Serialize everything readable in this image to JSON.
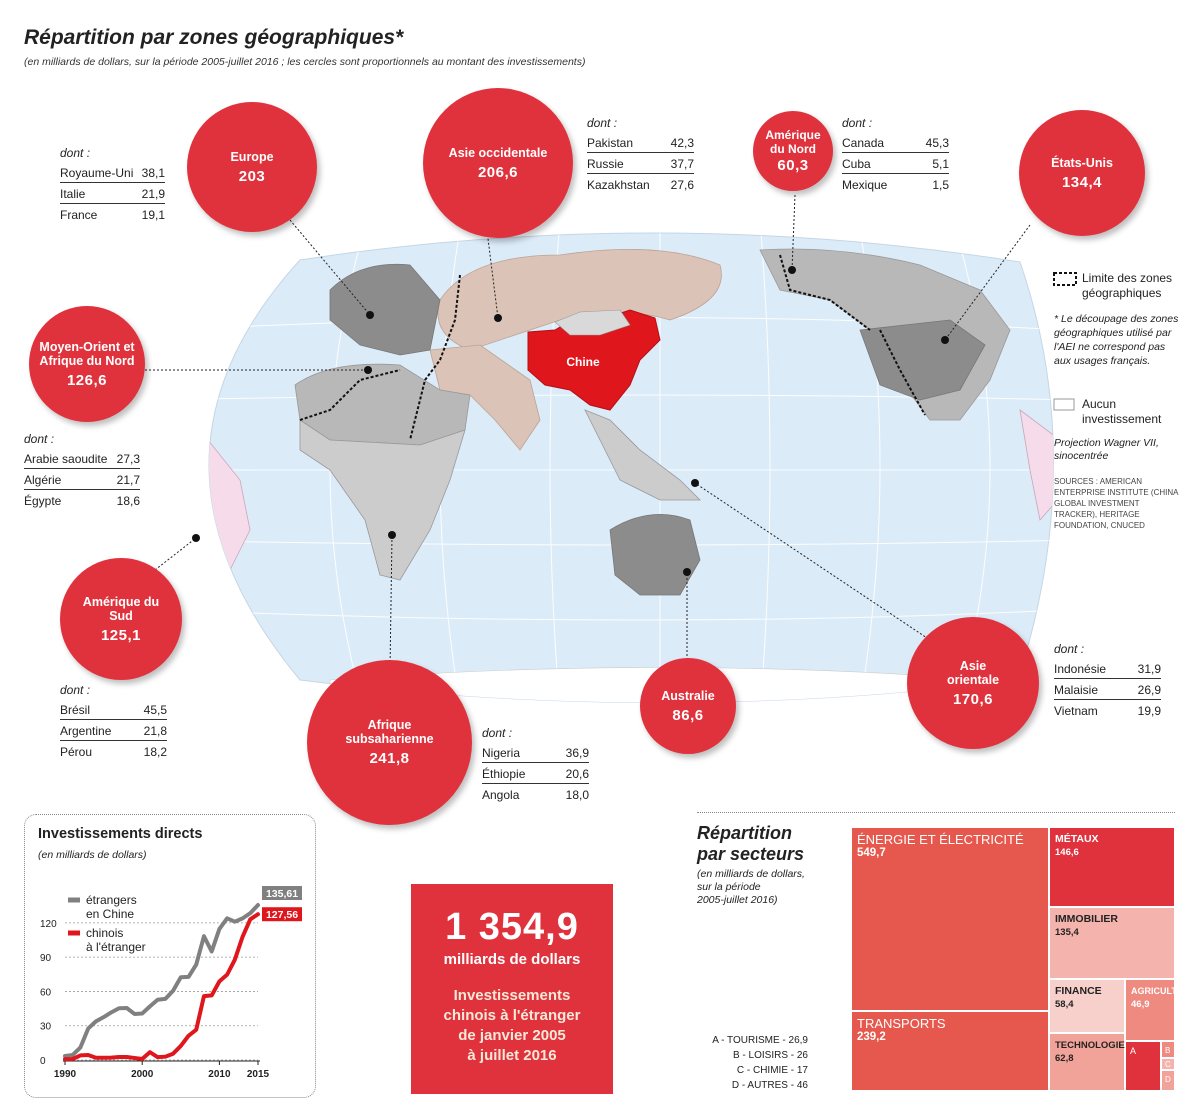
{
  "title": "Répartition par zones géographiques*",
  "subtitle": "(en milliards de dollars, sur la période 2005-juillet 2016 ; les cercles sont proportionnels au montant des investissements)",
  "map": {
    "china_label": "Chine",
    "colors": {
      "china": "#e0161d",
      "ocean": "#dcebf8",
      "west_asia": "#dcc3b7",
      "gray_mid": "#b8b8b8",
      "gray_dark": "#8c8c8c",
      "south_america": "#f6dcea",
      "none": "#ffffff",
      "circle": "#e0323d"
    },
    "legend": {
      "boundary": "Limite des zones géographiques",
      "note": "* Le découpage des zones géographiques utilisé par l'AEI ne correspond pas aux usages français.",
      "no_investment": "Aucun investissement",
      "projection": "Projection Wagner VII, sinocentrée",
      "sources": "SOURCES : AMERICAN ENTERPRISE INSTITUTE (CHINA GLOBAL INVESTMENT TRACKER), HERITAGE FOUNDATION, CNUCED"
    }
  },
  "regions": [
    {
      "name": "Europe",
      "value": "203",
      "dont": [
        [
          "Royaume-Uni",
          "38,1"
        ],
        [
          "Italie",
          "21,9"
        ],
        [
          "France",
          "19,1"
        ]
      ]
    },
    {
      "name": "Asie occidentale",
      "value": "206,6",
      "dont": [
        [
          "Pakistan",
          "42,3"
        ],
        [
          "Russie",
          "37,7"
        ],
        [
          "Kazakhstan",
          "27,6"
        ]
      ]
    },
    {
      "name": "Amérique du Nord",
      "value": "60,3",
      "dont": [
        [
          "Canada",
          "45,3"
        ],
        [
          "Cuba",
          "5,1"
        ],
        [
          "Mexique",
          "1,5"
        ]
      ]
    },
    {
      "name": "États-Unis",
      "value": "134,4"
    },
    {
      "name": "Moyen-Orient et Afrique du Nord",
      "value": "126,6",
      "dont": [
        [
          "Arabie saoudite",
          "27,3"
        ],
        [
          "Algérie",
          "21,7"
        ],
        [
          "Égypte",
          "18,6"
        ]
      ]
    },
    {
      "name": "Amérique du Sud",
      "value": "125,1",
      "dont": [
        [
          "Brésil",
          "45,5"
        ],
        [
          "Argentine",
          "21,8"
        ],
        [
          "Pérou",
          "18,2"
        ]
      ]
    },
    {
      "name": "Afrique subsaharienne",
      "value": "241,8",
      "dont": [
        [
          "Nigeria",
          "36,9"
        ],
        [
          "Éthiopie",
          "20,6"
        ],
        [
          "Angola",
          "18,0"
        ]
      ]
    },
    {
      "name": "Australie",
      "value": "86,6"
    },
    {
      "name": "Asie orientale",
      "value": "170,6",
      "dont": [
        [
          "Indonésie",
          "31,9"
        ],
        [
          "Malaisie",
          "26,9"
        ],
        [
          "Vietnam",
          "19,9"
        ]
      ]
    }
  ],
  "dont_label": "dont :",
  "investments_chart": {
    "title": "Investissements directs",
    "subtitle": "(en milliards de dollars)",
    "chart_data": {
      "type": "line",
      "x": [
        1990,
        1991,
        1992,
        1993,
        1994,
        1995,
        1996,
        1997,
        1998,
        1999,
        2000,
        2001,
        2002,
        2003,
        2004,
        2005,
        2006,
        2007,
        2008,
        2009,
        2010,
        2011,
        2012,
        2013,
        2014,
        2015
      ],
      "series": [
        {
          "name": "étrangers en Chine",
          "color": "#808080",
          "values": [
            3.5,
            4.4,
            11,
            27.5,
            33.8,
            37.5,
            41.7,
            45.3,
            45.5,
            40.3,
            40.7,
            46.9,
            52.7,
            53.5,
            60.6,
            72.4,
            72.7,
            83.5,
            108.3,
            95,
            114.7,
            124,
            121,
            123.9,
            128.5,
            135.61
          ]
        },
        {
          "name": "chinois à l'étranger",
          "color": "#e0161d",
          "values": [
            0.8,
            0.9,
            4,
            4.4,
            2,
            2,
            2.1,
            2.6,
            2.6,
            1.8,
            0.9,
            6.9,
            2.5,
            2.9,
            5.5,
            12.3,
            21.2,
            26.5,
            55.9,
            56.5,
            68.8,
            74.7,
            87.8,
            107.8,
            123.1,
            127.56
          ]
        }
      ],
      "end_labels": [
        "135,61",
        "127,56"
      ],
      "yticks": [
        "0",
        "30",
        "60",
        "90",
        "120"
      ],
      "xticks": [
        "1990",
        "2000",
        "2010",
        "2015"
      ],
      "ylim": [
        0,
        140
      ],
      "xlim": [
        1990,
        2015
      ]
    }
  },
  "total": {
    "number": "1 354,9",
    "unit": "milliards de dollars",
    "desc": [
      "Investissements",
      "chinois à l'étranger",
      "de janvier 2005",
      "à juillet 2016"
    ]
  },
  "sectors": {
    "title": [
      "Répartition",
      "par secteurs"
    ],
    "subtitle": [
      "(en milliards de dollars,",
      "sur la période",
      "2005-juillet 2016)"
    ],
    "chart_data": {
      "type": "treemap",
      "items": [
        {
          "name": "ÉNERGIE ET ÉLECTRICITÉ",
          "value": "549,7",
          "color": "#e6584d"
        },
        {
          "name": "TRANSPORTS",
          "value": "239,2",
          "color": "#e6584d"
        },
        {
          "name": "MÉTAUX",
          "value": "146,6",
          "color": "#e0323d"
        },
        {
          "name": "IMMOBILIER",
          "value": "135,4",
          "color": "#f4b3ad"
        },
        {
          "name": "FINANCE",
          "value": "58,4",
          "color": "#f8d0cb"
        },
        {
          "name": "AGRICULT.",
          "value": "46,9",
          "color": "#ee8a80"
        },
        {
          "name": "TECHNOLOGIE",
          "value": "62,8",
          "color": "#f2a399"
        },
        {
          "name": "A",
          "value": "26,9",
          "color": "#e0323d"
        },
        {
          "name": "B",
          "value": "26",
          "color": "#ee8a80"
        },
        {
          "name": "C",
          "value": "17",
          "color": "#f4b3ad"
        },
        {
          "name": "D",
          "value": "46",
          "color": "#f2a399"
        }
      ],
      "small_legend": [
        "A - TOURISME - 26,9",
        "B - LOISIRS - 26",
        "C - CHIMIE - 17",
        "D - AUTRES - 46"
      ]
    }
  }
}
